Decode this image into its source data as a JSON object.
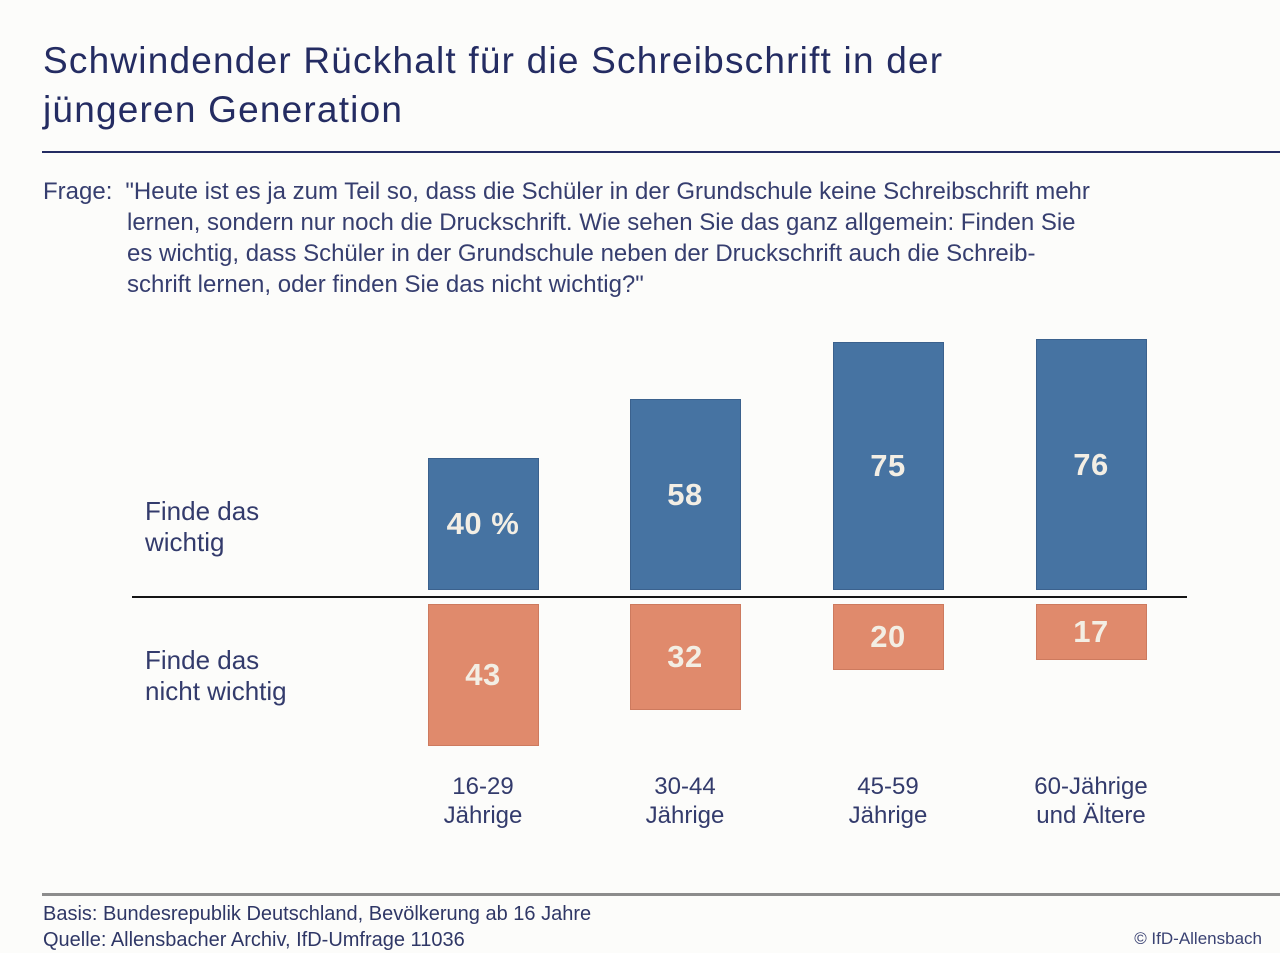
{
  "header": {
    "title_lines": [
      "Schwindender Rückhalt für die Schreibschrift in der",
      "jüngeren Generation"
    ]
  },
  "question": {
    "label": "Frage:",
    "lines": [
      "\"Heute ist es ja zum Teil so, dass die Schüler in der Grundschule keine Schreibschrift mehr",
      "lernen, sondern nur noch die Druckschrift. Wie sehen Sie das ganz allgemein: Finden Sie",
      "es wichtig, dass Schüler in der Grundschule neben der Druckschrift auch die Schreib-",
      "schrift lernen, oder finden Sie das nicht wichtig?\""
    ]
  },
  "chart_data": {
    "type": "bar",
    "subtype": "diverging-vertical",
    "unit": "%",
    "grid": false,
    "legend_position": "row-labels-left",
    "categories": [
      "16-29 Jährige",
      "30-44 Jährige",
      "45-59 Jährige",
      "60-Jährige und Ältere"
    ],
    "category_lines": [
      [
        "16-29",
        "Jährige"
      ],
      [
        "30-44",
        "Jährige"
      ],
      [
        "45-59",
        "Jährige"
      ],
      [
        "60-Jährige",
        "und Ältere"
      ]
    ],
    "series": [
      {
        "name": "Finde das wichtig",
        "name_lines": [
          "Finde das",
          "wichtig"
        ],
        "direction": "up",
        "values": [
          40,
          58,
          75,
          76
        ],
        "value_labels": [
          "40 %",
          "58",
          "75",
          "76"
        ],
        "color": "#4673a2",
        "border_color": "#3b618d"
      },
      {
        "name": "Finde das nicht wichtig",
        "name_lines": [
          "Finde das",
          "nicht wichtig"
        ],
        "direction": "down",
        "values": [
          43,
          32,
          20,
          17
        ],
        "value_labels": [
          "43",
          "32",
          "20",
          "17"
        ],
        "color": "#e08a6c",
        "border_color": "#cd7a5e"
      }
    ]
  },
  "footer": {
    "basis": "Basis: Bundesrepublik Deutschland, Bevölkerung ab 16 Jahre",
    "quelle": "Quelle: Allensbacher Archiv, IfD-Umfrage 11036",
    "copyright": "© IfD-Allensbach"
  },
  "colors": {
    "title_text": "#242c62",
    "body_text": "#363e6f",
    "bar_blue": "#4673a2",
    "bar_orange": "#e08a6c",
    "bar_value_text": "#f3eee4",
    "baseline": "#151515",
    "footer_rule": "#8c8c8c"
  }
}
